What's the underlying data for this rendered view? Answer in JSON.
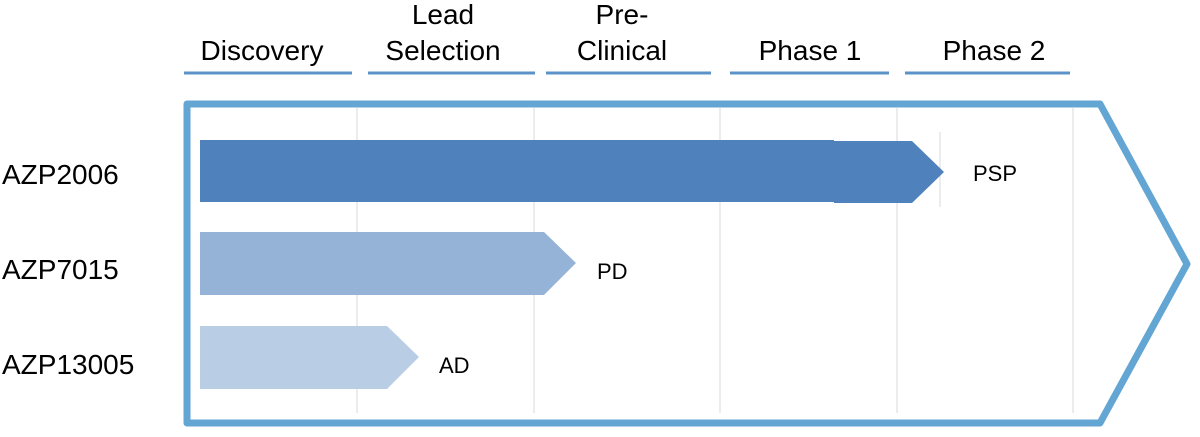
{
  "colors": {
    "frame": "#63a5d3",
    "gridline": "#d9d9d9",
    "stage_underline": "#5b93c9",
    "bar_primary": "#4f81bd",
    "bar_secondary": "#95b3d7",
    "bar_tertiary": "#b9cde5",
    "text": "#000000"
  },
  "stages": [
    {
      "line1": "",
      "line2": "Discovery"
    },
    {
      "line1": "Lead",
      "line2": "Selection"
    },
    {
      "line1": "Pre-",
      "line2": "Clinical"
    },
    {
      "line1": "",
      "line2": "Phase 1"
    },
    {
      "line1": "",
      "line2": "Phase 2"
    }
  ],
  "programs": [
    {
      "name": "AZP2006",
      "indication": "PSP",
      "color": "bar_primary"
    },
    {
      "name": "AZP7015",
      "indication": "PD",
      "color": "bar_secondary"
    },
    {
      "name": "AZP13005",
      "indication": "AD",
      "color": "bar_tertiary"
    }
  ]
}
